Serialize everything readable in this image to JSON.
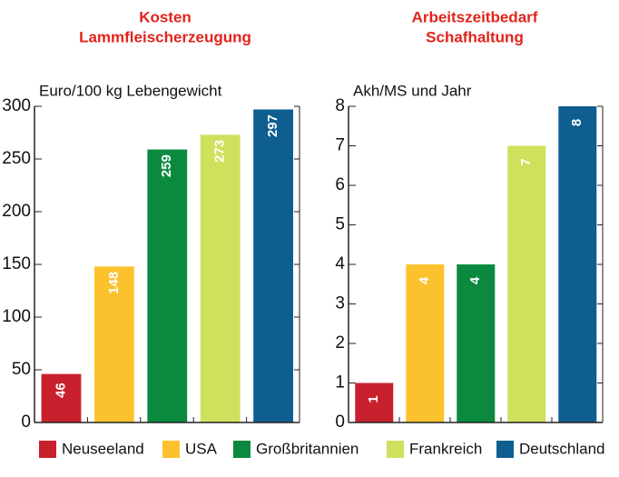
{
  "chart_data": [
    {
      "type": "bar",
      "title": [
        "Kosten",
        "Lammfleischerzeugung"
      ],
      "ylabel": "Euro/100 kg Lebengewicht",
      "categories": [
        "Neuseeland",
        "USA",
        "Großbritannien",
        "Frankreich",
        "Deutschland"
      ],
      "values": [
        46,
        148,
        259,
        273,
        297
      ],
      "colors": [
        "#c9202e",
        "#fcc22e",
        "#0b8a3f",
        "#cfe05c",
        "#0e5e8f"
      ],
      "ylim": [
        0,
        300
      ],
      "yticks": [
        0,
        50,
        100,
        150,
        200,
        250,
        300
      ]
    },
    {
      "type": "bar",
      "title": [
        "Arbeitszeitbedarf",
        "Schafhaltung"
      ],
      "ylabel": "Akh/MS und Jahr",
      "categories": [
        "Neuseeland",
        "USA",
        "Großbritannien",
        "Frankreich",
        "Deutschland"
      ],
      "values": [
        1,
        4,
        4,
        7,
        8
      ],
      "colors": [
        "#c9202e",
        "#fcc22e",
        "#0b8a3f",
        "#cfe05c",
        "#0e5e8f"
      ],
      "ylim": [
        0,
        8
      ],
      "yticks": [
        0,
        1,
        2,
        3,
        4,
        5,
        6,
        7,
        8
      ]
    }
  ]
}
